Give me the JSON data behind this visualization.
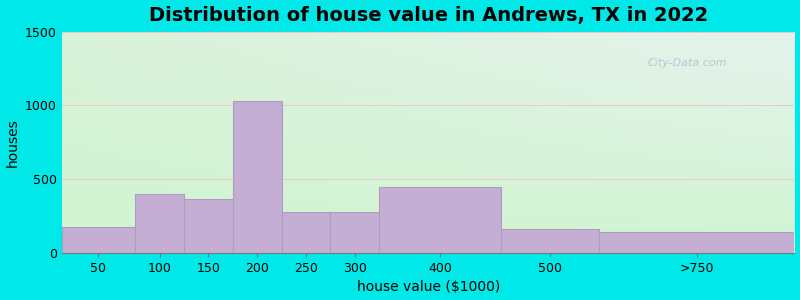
{
  "title": "Distribution of house value in Andrews, TX in 2022",
  "xlabel": "house value ($1000)",
  "ylabel": "houses",
  "bin_edges": [
    0,
    75,
    125,
    175,
    225,
    275,
    325,
    450,
    550,
    750
  ],
  "tick_labels": [
    "50",
    "100",
    "150",
    "200",
    "250",
    "300",
    "400",
    "500",
    ">750"
  ],
  "values": [
    175,
    400,
    365,
    1030,
    280,
    280,
    450,
    165,
    140
  ],
  "bar_color": "#c4aed4",
  "bar_edge_color": "#b09cc0",
  "ylim": [
    0,
    1500
  ],
  "yticks": [
    0,
    500,
    1000,
    1500
  ],
  "bg_outer": "#00e8e8",
  "title_fontsize": 14,
  "axis_label_fontsize": 10,
  "tick_fontsize": 9,
  "grid_color": "#e8c8c8",
  "watermark_text": "City-Data.com",
  "watermark_color": "#aabfcc"
}
